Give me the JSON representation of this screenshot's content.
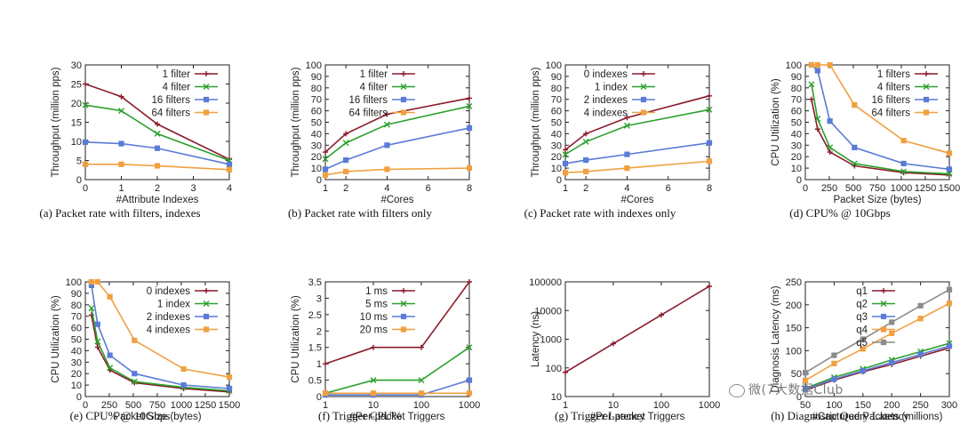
{
  "watermark": "微(7大数据Club",
  "colors": {
    "s1": "#8b1a2b",
    "s2": "#2ca02c",
    "s3": "#5b7bd6",
    "s4": "#f0a040",
    "s5": "#8c8c8c"
  },
  "chart_data": [
    {
      "id": "a",
      "type": "line",
      "caption": "(a)  Packet rate with filters, indexes",
      "xlabel": "#Attribute Indexes",
      "ylabel": "Throughput (million pps)",
      "xlim": [
        0,
        4
      ],
      "ylim": [
        0,
        30
      ],
      "xticks": [
        0,
        1,
        2,
        3,
        4
      ],
      "yticks": [
        0,
        5,
        10,
        15,
        20,
        25,
        30
      ],
      "legend": "top-right",
      "grid": false,
      "series": [
        {
          "name": "1 filter",
          "x": [
            0,
            1,
            2,
            4
          ],
          "y": [
            25,
            21.7,
            14.5,
            5.3
          ]
        },
        {
          "name": "4 filter",
          "x": [
            0,
            1,
            2,
            4
          ],
          "y": [
            19.5,
            18,
            12,
            5
          ]
        },
        {
          "name": "16 filters",
          "x": [
            0,
            1,
            2,
            4
          ],
          "y": [
            9.8,
            9.4,
            8.2,
            4
          ]
        },
        {
          "name": "64 filters",
          "x": [
            0,
            1,
            2,
            4
          ],
          "y": [
            4,
            4,
            3.6,
            2.6
          ]
        }
      ]
    },
    {
      "id": "b",
      "type": "line",
      "caption": "(b)  Packet rate with filters only",
      "xlabel": "#Cores",
      "ylabel": "Throughput (million pps)",
      "xlim": [
        1,
        8
      ],
      "ylim": [
        0,
        100
      ],
      "xticks": [
        1,
        2,
        4,
        6,
        8
      ],
      "yticks": [
        0,
        10,
        20,
        30,
        40,
        50,
        60,
        70,
        80,
        90,
        100
      ],
      "legend": "top-left",
      "grid": false,
      "series": [
        {
          "name": "1 filter",
          "x": [
            1,
            2,
            4,
            8
          ],
          "y": [
            24,
            40,
            57,
            71
          ]
        },
        {
          "name": "4 filter",
          "x": [
            1,
            2,
            4,
            8
          ],
          "y": [
            18,
            32,
            48,
            64
          ]
        },
        {
          "name": "16 filters",
          "x": [
            1,
            2,
            4,
            8
          ],
          "y": [
            9,
            17,
            30,
            45
          ]
        },
        {
          "name": "64 filters",
          "x": [
            1,
            2,
            4,
            8
          ],
          "y": [
            4,
            7,
            9,
            10
          ]
        }
      ]
    },
    {
      "id": "c",
      "type": "line",
      "caption": "(c)  Packet rate with indexes only",
      "xlabel": "#Cores",
      "ylabel": "Throughput (million pps)",
      "xlim": [
        1,
        8
      ],
      "ylim": [
        0,
        100
      ],
      "xticks": [
        1,
        2,
        4,
        6,
        8
      ],
      "yticks": [
        0,
        10,
        20,
        30,
        40,
        50,
        60,
        70,
        80,
        90,
        100
      ],
      "legend": "top-left",
      "grid": false,
      "series": [
        {
          "name": "0 indexes",
          "x": [
            1,
            2,
            4,
            8
          ],
          "y": [
            26,
            40,
            54,
            73
          ]
        },
        {
          "name": "1 index",
          "x": [
            1,
            2,
            4,
            8
          ],
          "y": [
            22,
            33,
            47,
            61
          ]
        },
        {
          "name": "2 indexes",
          "x": [
            1,
            2,
            4,
            8
          ],
          "y": [
            14,
            17,
            22,
            32
          ]
        },
        {
          "name": "4 indexes",
          "x": [
            1,
            2,
            4,
            8
          ],
          "y": [
            6,
            7,
            10,
            16
          ]
        }
      ]
    },
    {
      "id": "d",
      "type": "line",
      "caption": "(d)  CPU% @ 10Gbps",
      "xlabel": "Packet Size (bytes)",
      "ylabel": "CPU Utilization (%)",
      "xlim": [
        0,
        1500
      ],
      "ylim": [
        0,
        100
      ],
      "xticks": [
        0,
        250,
        500,
        750,
        1000,
        1250,
        1500
      ],
      "yticks": [
        0,
        10,
        20,
        30,
        40,
        50,
        60,
        70,
        80,
        90,
        100
      ],
      "legend": "top-right",
      "grid": false,
      "series": [
        {
          "name": "1 filters",
          "x": [
            64,
            128,
            256,
            512,
            1024,
            1500
          ],
          "y": [
            70,
            44,
            24,
            12,
            6,
            4
          ]
        },
        {
          "name": "4 filters",
          "x": [
            64,
            128,
            256,
            512,
            1024,
            1500
          ],
          "y": [
            83,
            53,
            28,
            14,
            7,
            5
          ]
        },
        {
          "name": "16 filters",
          "x": [
            64,
            128,
            256,
            512,
            1024,
            1500
          ],
          "y": [
            100,
            95,
            51,
            28,
            14,
            9
          ]
        },
        {
          "name": "64 filters",
          "x": [
            64,
            128,
            256,
            512,
            1024,
            1500
          ],
          "y": [
            100,
            100,
            100,
            65,
            34,
            23
          ]
        }
      ]
    },
    {
      "id": "e",
      "type": "line",
      "caption": "(e)  CPU% @ 10Gbps",
      "xlabel": "Packet Size (bytes)",
      "ylabel": "CPU Utilization (%)",
      "xlim": [
        0,
        1500
      ],
      "ylim": [
        0,
        100
      ],
      "xticks": [
        0,
        250,
        500,
        750,
        1000,
        1250,
        1500
      ],
      "yticks": [
        0,
        10,
        20,
        30,
        40,
        50,
        60,
        70,
        80,
        90,
        100
      ],
      "legend": "top-right",
      "grid": false,
      "series": [
        {
          "name": "0 indexes",
          "x": [
            64,
            128,
            256,
            512,
            1024,
            1500
          ],
          "y": [
            71,
            43,
            23,
            12,
            7,
            4
          ]
        },
        {
          "name": "1 index",
          "x": [
            64,
            128,
            256,
            512,
            1024,
            1500
          ],
          "y": [
            77,
            48,
            25,
            13,
            8,
            5
          ]
        },
        {
          "name": "2 indexes",
          "x": [
            64,
            128,
            256,
            512,
            1024,
            1500
          ],
          "y": [
            97,
            63,
            36,
            20,
            10,
            7
          ]
        },
        {
          "name": "4 indexes",
          "x": [
            64,
            128,
            256,
            512,
            1024,
            1500
          ],
          "y": [
            100,
            100,
            87,
            49,
            24,
            17
          ]
        }
      ]
    },
    {
      "id": "f",
      "type": "line",
      "caption": "(f)  Trigger CPU%",
      "xlabel": "#Per-packet Triggers",
      "ylabel": "CPU Utilization (%)",
      "xscale": "log",
      "xlim": [
        1,
        1000
      ],
      "ylim": [
        0,
        3.5
      ],
      "xticks": [
        1,
        10,
        100,
        1000
      ],
      "yticks": [
        0,
        0.5,
        1,
        1.5,
        2,
        2.5,
        3,
        3.5
      ],
      "legend": "top-left",
      "grid": false,
      "series": [
        {
          "name": "1 ms",
          "x": [
            1,
            10,
            100,
            1000
          ],
          "y": [
            1,
            1.5,
            1.5,
            3.5
          ]
        },
        {
          "name": "5 ms",
          "x": [
            1,
            10,
            100,
            1000
          ],
          "y": [
            0.1,
            0.5,
            0.5,
            1.5
          ]
        },
        {
          "name": "10 ms",
          "x": [
            1,
            10,
            100,
            1000
          ],
          "y": [
            0.05,
            0.05,
            0.05,
            0.5
          ]
        },
        {
          "name": "20 ms",
          "x": [
            1,
            10,
            100,
            1000
          ],
          "y": [
            0.1,
            0.1,
            0.1,
            0.1
          ]
        }
      ]
    },
    {
      "id": "g",
      "type": "line",
      "caption": "(g)  Trigger Latency",
      "xlabel": "#Per-packet Triggers",
      "ylabel": "Latency (ns)",
      "xscale": "log",
      "yscale": "log",
      "xlim": [
        1,
        1000
      ],
      "ylim": [
        10,
        100000
      ],
      "xticks": [
        1,
        10,
        100,
        1000
      ],
      "yticks": [
        10,
        100,
        1000,
        10000,
        100000
      ],
      "grid": false,
      "series": [
        {
          "x": [
            1,
            10,
            100,
            1000
          ],
          "y": [
            70,
            700,
            7000,
            70000
          ]
        }
      ]
    },
    {
      "id": "h",
      "type": "line",
      "caption": "(h)  Diagnostic Query Latency",
      "xlabel": "#Captured Packets (millions)",
      "ylabel": "Diagnosis Latency (ms)",
      "xlim": [
        50,
        300
      ],
      "ylim": [
        0,
        250
      ],
      "xticks": [
        50,
        100,
        150,
        200,
        250,
        300
      ],
      "yticks": [
        0,
        50,
        100,
        150,
        200,
        250
      ],
      "legend": "top-left",
      "grid": false,
      "series": [
        {
          "name": "q1",
          "x": [
            50,
            100,
            150,
            200,
            250,
            300
          ],
          "y": [
            14,
            36,
            54,
            70,
            88,
            106
          ]
        },
        {
          "name": "q2",
          "x": [
            50,
            100,
            150,
            200,
            250,
            300
          ],
          "y": [
            18,
            42,
            60,
            80,
            98,
            116
          ]
        },
        {
          "name": "q3",
          "x": [
            50,
            100,
            150,
            200,
            250,
            300
          ],
          "y": [
            16,
            38,
            56,
            74,
            92,
            110
          ]
        },
        {
          "name": "q4",
          "x": [
            50,
            100,
            150,
            200,
            250,
            300
          ],
          "y": [
            35,
            72,
            104,
            138,
            170,
            203
          ]
        },
        {
          "name": "q5",
          "x": [
            50,
            100,
            150,
            200,
            250,
            300
          ],
          "y": [
            52,
            90,
            125,
            162,
            198,
            233
          ]
        }
      ]
    }
  ]
}
